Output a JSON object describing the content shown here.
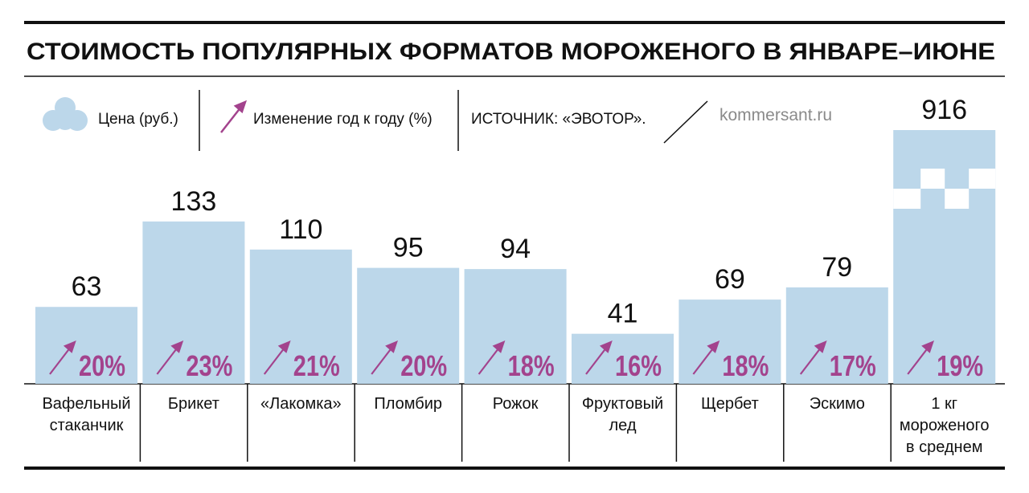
{
  "chart_data": {
    "type": "bar",
    "title": "СТОИМОСТЬ ПОПУЛЯРНЫХ ФОРМАТОВ МОРОЖЕНОГО В ЯНВАРЕ–ИЮНЕ",
    "source": "ИСТОЧНИК: «ЭВОТОР».",
    "site": "kommersant.ru",
    "categories": [
      "Вафельный стаканчик",
      "Брикет",
      "«Лакомка»",
      "Пломбир",
      "Рожок",
      "Фруктовый лед",
      "Щербет",
      "Эскимо",
      "1 кг мороженого в среднем"
    ],
    "series": [
      {
        "name": "Цена (руб.)",
        "color": "#bcd7ea",
        "values": [
          63,
          133,
          110,
          95,
          94,
          41,
          69,
          79,
          916
        ]
      },
      {
        "name": "Изменение год к году (%)",
        "color": "#a3438d",
        "values": [
          20,
          23,
          21,
          20,
          18,
          16,
          18,
          17,
          19
        ],
        "value_labels": [
          "20%",
          "23%",
          "21%",
          "20%",
          "18%",
          "16%",
          "18%",
          "17%",
          "19%"
        ]
      }
    ]
  }
}
